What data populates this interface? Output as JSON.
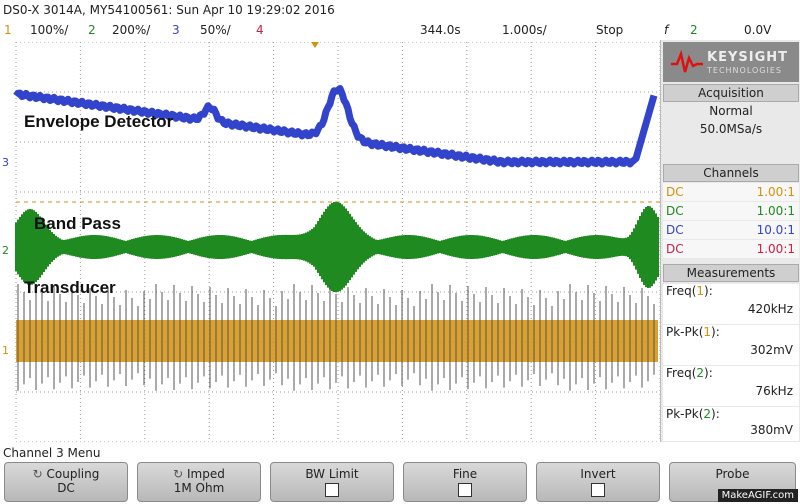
{
  "titlebar": {
    "text": "DS0-X 3014A, MY54100561: Sun Apr 10 19:29:02 2016"
  },
  "statusbar": {
    "ch1_num": "1",
    "ch1_scale": "100%/",
    "ch2_num": "2",
    "ch2_scale": "200%/",
    "ch3_num": "3",
    "ch3_scale": "50%/",
    "ch4_num": "4",
    "timebase_pos": "344.0s",
    "timebase_scale": "1.000s/",
    "run_state": "Stop",
    "trigger_icon": "trigger-edge-icon",
    "trigger_ch": "2",
    "trigger_level": "0.0V"
  },
  "colors": {
    "ch1": "#d4910a",
    "ch2": "#1f8a1f",
    "ch3": "#3344cc",
    "ch4": "#c8204a",
    "grid": "#9a9a9a"
  },
  "traces": {
    "envelope_label": "Envelope Detector",
    "bandpass_label": "Band Pass",
    "transducer_label": "Transducer"
  },
  "panel": {
    "logo_text": "KEYSIGHT",
    "logo_sub": "TECHNOLOGIES",
    "acq_title": "Acquisition",
    "acq_mode": "Normal",
    "acq_rate": "50.0MSa/s",
    "channels_title": "Channels",
    "channels": [
      {
        "coupling": "DC",
        "probe": "1.00:1"
      },
      {
        "coupling": "DC",
        "probe": "1.00:1"
      },
      {
        "coupling": "DC",
        "probe": "10.0:1"
      },
      {
        "coupling": "DC",
        "probe": "1.00:1"
      }
    ],
    "meas_title": "Measurements",
    "measurements": [
      {
        "label": "Freq(",
        "ch": "1",
        "close": "):",
        "value": "420kHz"
      },
      {
        "label": "Pk-Pk(",
        "ch": "1",
        "close": "):",
        "value": "302mV"
      },
      {
        "label": "Freq(",
        "ch": "2",
        "close": "):",
        "value": "76kHz"
      },
      {
        "label": "Pk-Pk(",
        "ch": "2",
        "close": "):",
        "value": "380mV"
      }
    ]
  },
  "menu": {
    "title": "Channel 3 Menu",
    "softkeys": [
      {
        "label": "Coupling",
        "value": "DC"
      },
      {
        "label": "Imped",
        "value": "1M Ohm"
      },
      {
        "label": "BW Limit",
        "value": ""
      },
      {
        "label": "Fine",
        "value": ""
      },
      {
        "label": "Invert",
        "value": ""
      },
      {
        "label": "Probe",
        "value": ""
      }
    ]
  },
  "watermark": "MakeAGIF.com"
}
